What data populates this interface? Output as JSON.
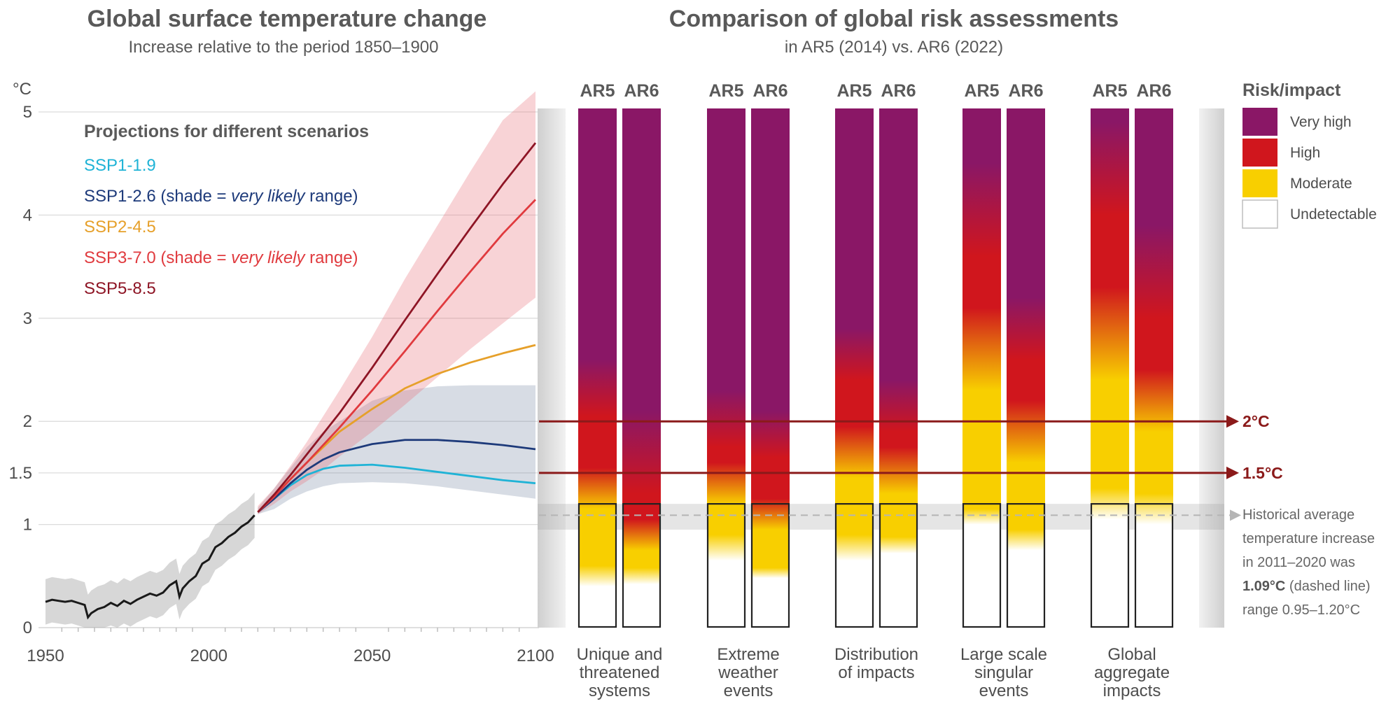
{
  "left_panel": {
    "title": "Global surface temperature change",
    "subtitle": "Increase relative to the period 1850–1900",
    "unit_label": "°C",
    "projections_title": "Projections for different scenarios",
    "scenario_labels": [
      {
        "name": "SSP1-1.9",
        "suffix": "",
        "italic": "",
        "suffix2": "",
        "color": "#1fb3d6"
      },
      {
        "name": "SSP1-2.6",
        "suffix": " (shade = ",
        "italic": "very likely",
        "suffix2": " range)",
        "color": "#1d3a7a"
      },
      {
        "name": "SSP2-4.5",
        "suffix": "",
        "italic": "",
        "suffix2": "",
        "color": "#e6a02a"
      },
      {
        "name": "SSP3-7.0",
        "suffix": " (shade = ",
        "italic": "very likely",
        "suffix2": " range)",
        "color": "#e03a3e"
      },
      {
        "name": "SSP5-8.5",
        "suffix": "",
        "italic": "",
        "suffix2": "",
        "color": "#8e1525"
      }
    ]
  },
  "right_panel": {
    "title": "Comparison of global risk assessments",
    "subtitle": "in AR5 (2014) vs. AR6 (2022)",
    "column_labels": [
      "AR5",
      "AR6"
    ],
    "categories": [
      [
        "Unique and",
        "threatened",
        "systems"
      ],
      [
        "Extreme",
        "weather",
        "events"
      ],
      [
        "Distribution",
        "of impacts"
      ],
      [
        "Large scale",
        "singular",
        "events"
      ],
      [
        "Global",
        "aggregate",
        "impacts"
      ]
    ],
    "legend_title": "Risk/impact",
    "legend": [
      {
        "label": "Very high",
        "color": "#8a1766"
      },
      {
        "label": "High",
        "color": "#d0161d"
      },
      {
        "label": "Moderate",
        "color": "#f8cf00"
      },
      {
        "label": "Undetectable",
        "color": "#ffffff"
      }
    ],
    "reference_lines": [
      {
        "label": "2°C",
        "value": 2.0
      },
      {
        "label": "1.5°C",
        "value": 1.5
      }
    ],
    "historical_note": [
      {
        "plain": "Historical average",
        "bold": "",
        "after": ""
      },
      {
        "plain": "temperature increase",
        "bold": "",
        "after": ""
      },
      {
        "plain": "in 2011–2020 was",
        "bold": "",
        "after": ""
      },
      {
        "plain": "",
        "bold": "1.09°C",
        "after": " (dashed line)"
      },
      {
        "plain": "range 0.95–1.20°C",
        "bold": "",
        "after": ""
      }
    ]
  },
  "chart_data": [
    {
      "type": "line",
      "title": "Global surface temperature change",
      "subtitle": "Increase relative to the period 1850–1900",
      "ylabel": "°C",
      "xlim": [
        1950,
        2100
      ],
      "ylim": [
        0,
        5
      ],
      "xticks": [
        "1950",
        "2000",
        "2050",
        "2100"
      ],
      "yticks": [
        "0",
        "1",
        "1.5",
        "2",
        "3",
        "4",
        "5"
      ],
      "grid": true,
      "legend_position": "top-left",
      "historical": {
        "name": "",
        "x": [
          1950,
          1952,
          1954,
          1956,
          1958,
          1960,
          1962,
          1963,
          1964,
          1966,
          1968,
          1970,
          1972,
          1974,
          1976,
          1978,
          1980,
          1982,
          1984,
          1986,
          1988,
          1990,
          1991,
          1992,
          1994,
          1996,
          1998,
          2000,
          2002,
          2004,
          2006,
          2008,
          2010,
          2012,
          2014
        ],
        "y": [
          0.25,
          0.27,
          0.26,
          0.25,
          0.26,
          0.24,
          0.22,
          0.1,
          0.14,
          0.18,
          0.2,
          0.24,
          0.21,
          0.26,
          0.23,
          0.27,
          0.3,
          0.33,
          0.31,
          0.34,
          0.41,
          0.45,
          0.3,
          0.38,
          0.45,
          0.5,
          0.62,
          0.66,
          0.78,
          0.82,
          0.88,
          0.92,
          0.98,
          1.02,
          1.09
        ]
      },
      "historical_range": {
        "lower_offset": -0.22,
        "upper_offset": 0.22
      },
      "series": [
        {
          "name": "SSP1-1.9",
          "color": "#1fb3d6",
          "x": [
            2015,
            2020,
            2025,
            2030,
            2035,
            2040,
            2050,
            2060,
            2070,
            2080,
            2090,
            2100
          ],
          "y": [
            1.12,
            1.25,
            1.38,
            1.48,
            1.54,
            1.57,
            1.58,
            1.55,
            1.51,
            1.47,
            1.43,
            1.4
          ]
        },
        {
          "name": "SSP1-2.6",
          "color": "#1d3a7a",
          "x": [
            2015,
            2020,
            2025,
            2030,
            2035,
            2040,
            2050,
            2060,
            2070,
            2080,
            2090,
            2100
          ],
          "y": [
            1.12,
            1.25,
            1.4,
            1.53,
            1.63,
            1.7,
            1.78,
            1.82,
            1.82,
            1.8,
            1.77,
            1.73
          ],
          "range_lower": [
            1.1,
            1.15,
            1.25,
            1.32,
            1.37,
            1.4,
            1.41,
            1.4,
            1.37,
            1.33,
            1.29,
            1.25
          ],
          "range_upper": [
            1.16,
            1.35,
            1.55,
            1.75,
            1.9,
            2.0,
            2.2,
            2.3,
            2.34,
            2.35,
            2.35,
            2.35
          ]
        },
        {
          "name": "SSP2-4.5",
          "color": "#e6a02a",
          "x": [
            2015,
            2020,
            2025,
            2030,
            2035,
            2040,
            2050,
            2060,
            2070,
            2080,
            2090,
            2100
          ],
          "y": [
            1.12,
            1.28,
            1.44,
            1.6,
            1.75,
            1.9,
            2.12,
            2.32,
            2.46,
            2.57,
            2.66,
            2.74
          ]
        },
        {
          "name": "SSP3-7.0",
          "color": "#e03a3e",
          "x": [
            2015,
            2020,
            2025,
            2030,
            2035,
            2040,
            2050,
            2060,
            2070,
            2080,
            2090,
            2100
          ],
          "y": [
            1.12,
            1.27,
            1.44,
            1.6,
            1.77,
            1.94,
            2.3,
            2.68,
            3.07,
            3.45,
            3.82,
            4.15
          ],
          "range_lower": [
            1.1,
            1.2,
            1.32,
            1.42,
            1.53,
            1.66,
            1.9,
            2.16,
            2.43,
            2.7,
            2.95,
            3.2
          ],
          "range_upper": [
            1.18,
            1.35,
            1.57,
            1.8,
            2.05,
            2.3,
            2.82,
            3.38,
            3.9,
            4.42,
            4.92,
            5.2
          ]
        },
        {
          "name": "SSP5-8.5",
          "color": "#8e1525",
          "x": [
            2015,
            2020,
            2025,
            2030,
            2035,
            2040,
            2050,
            2060,
            2070,
            2080,
            2090,
            2100
          ],
          "y": [
            1.12,
            1.29,
            1.48,
            1.68,
            1.88,
            2.08,
            2.52,
            2.98,
            3.43,
            3.87,
            4.3,
            4.7
          ]
        }
      ]
    },
    {
      "type": "heatmap",
      "title": "Comparison of global risk assessments",
      "subtitle": "in AR5 (2014) vs. AR6 (2022)",
      "ylim": [
        0,
        5
      ],
      "categories": [
        "Unique and threatened systems",
        "Extreme weather events",
        "Distribution of impacts",
        "Large scale singular events",
        "Global aggregate impacts"
      ],
      "assessments": [
        "AR5",
        "AR6"
      ],
      "legend_title": "Risk/impact",
      "levels": [
        "Undetectable",
        "Moderate",
        "High",
        "Very high"
      ],
      "historical_warming": {
        "value": 1.09,
        "range": [
          0.95,
          1.2
        ]
      },
      "reference_lines": [
        1.5,
        2.0
      ],
      "bars": [
        {
          "category": "Unique and threatened systems",
          "assessment": "AR5",
          "transitions": {
            "undetectable_to_moderate": [
              0.4,
              0.6
            ],
            "moderate_to_high": [
              1.15,
              1.55
            ],
            "high_to_very_high": [
              2.05,
              2.6
            ]
          }
        },
        {
          "category": "Unique and threatened systems",
          "assessment": "AR6",
          "transitions": {
            "undetectable_to_moderate": [
              0.42,
              0.58
            ],
            "moderate_to_high": [
              0.75,
              1.05
            ],
            "high_to_very_high": [
              1.3,
              2.1
            ]
          }
        },
        {
          "category": "Extreme weather events",
          "assessment": "AR5",
          "transitions": {
            "undetectable_to_moderate": [
              0.65,
              0.9
            ],
            "moderate_to_high": [
              1.2,
              1.6
            ],
            "high_to_very_high": [
              1.75,
              2.3
            ]
          }
        },
        {
          "category": "Extreme weather events",
          "assessment": "AR6",
          "transitions": {
            "undetectable_to_moderate": [
              0.48,
              0.58
            ],
            "moderate_to_high": [
              0.95,
              1.25
            ],
            "high_to_very_high": [
              1.65,
              2.1
            ]
          }
        },
        {
          "category": "Distribution of impacts",
          "assessment": "AR5",
          "transitions": {
            "undetectable_to_moderate": [
              0.65,
              0.9
            ],
            "moderate_to_high": [
              1.45,
              1.95
            ],
            "high_to_very_high": [
              2.4,
              2.9
            ]
          }
        },
        {
          "category": "Distribution of impacts",
          "assessment": "AR6",
          "transitions": {
            "undetectable_to_moderate": [
              0.72,
              0.88
            ],
            "moderate_to_high": [
              1.3,
              1.75
            ],
            "high_to_very_high": [
              1.9,
              2.4
            ]
          }
        },
        {
          "category": "Large scale singular events",
          "assessment": "AR5",
          "transitions": {
            "undetectable_to_moderate": [
              1.0,
              1.15
            ],
            "moderate_to_high": [
              2.3,
              3.1
            ],
            "high_to_very_high": [
              3.6,
              4.5
            ]
          }
        },
        {
          "category": "Large scale singular events",
          "assessment": "AR6",
          "transitions": {
            "undetectable_to_moderate": [
              0.75,
              0.95
            ],
            "moderate_to_high": [
              1.6,
              2.2
            ],
            "high_to_very_high": [
              2.6,
              3.2
            ]
          }
        },
        {
          "category": "Global aggregate impacts",
          "assessment": "AR5",
          "transitions": {
            "undetectable_to_moderate": [
              1.05,
              1.35
            ],
            "moderate_to_high": [
              2.4,
              3.3
            ],
            "high_to_very_high": [
              4.0,
              4.9
            ]
          }
        },
        {
          "category": "Global aggregate impacts",
          "assessment": "AR6",
          "transitions": {
            "undetectable_to_moderate": [
              1.0,
              1.3
            ],
            "moderate_to_high": [
              1.9,
              2.5
            ],
            "high_to_very_high": [
              3.0,
              3.9
            ]
          }
        }
      ]
    }
  ]
}
